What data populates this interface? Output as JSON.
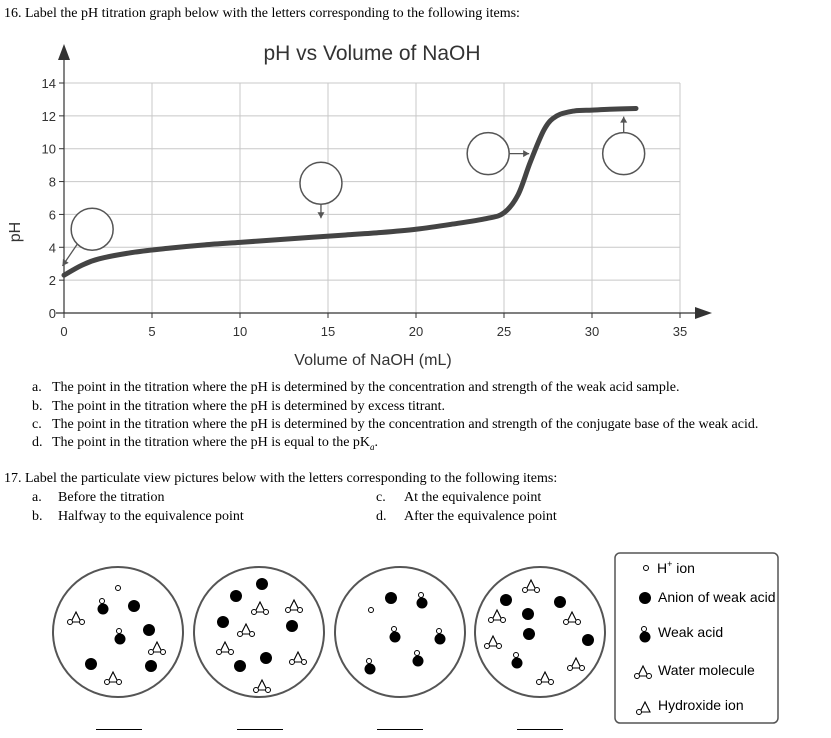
{
  "q16": {
    "prompt": "16.  Label the pH titration graph below with the letters corresponding to the following items:",
    "options": [
      {
        "letter": "a.",
        "text": "The point in the titration where the pH is determined by the concentration and strength of the weak acid sample."
      },
      {
        "letter": "b.",
        "text": "The point in the titration where the pH is determined by excess titrant."
      },
      {
        "letter": "c.",
        "text": "The point in the titration where the pH is determined by the concentration and strength of the conjugate base of the weak acid."
      },
      {
        "letter": "d.",
        "text": "The point in the titration where the pH is equal to the pK"
      },
      {
        "pka_sub": "a",
        "pka_end": "."
      }
    ]
  },
  "chart_data": {
    "type": "line",
    "title": "pH vs Volume of NaOH",
    "xlabel": "Volume of NaOH (mL)",
    "ylabel": "pH",
    "xlim": [
      0,
      35
    ],
    "ylim": [
      0,
      14
    ],
    "xticks": [
      0,
      5,
      10,
      15,
      20,
      25,
      30,
      35
    ],
    "yticks": [
      0,
      2,
      4,
      6,
      8,
      10,
      12,
      14
    ],
    "grid": true,
    "series": [
      {
        "x": [
          0,
          1,
          2,
          4,
          6,
          8,
          10,
          12,
          14,
          16,
          18,
          20,
          22,
          24,
          25,
          25.8,
          26.5,
          27.3,
          28,
          29,
          30,
          31,
          32.5
        ],
        "y": [
          2.3,
          2.9,
          3.3,
          3.7,
          3.95,
          4.15,
          4.3,
          4.45,
          4.6,
          4.75,
          4.9,
          5.1,
          5.4,
          5.75,
          6.1,
          7.2,
          9.2,
          11.2,
          12.0,
          12.3,
          12.35,
          12.4,
          12.45
        ]
      }
    ],
    "label_circles": [
      {
        "x": 1.6,
        "y": 5.1,
        "arrow": "down-left"
      },
      {
        "x": 14.6,
        "y": 7.9,
        "arrow": "down"
      },
      {
        "x": 24.1,
        "y": 9.7,
        "arrow": "right"
      },
      {
        "x": 31.8,
        "y": 9.7,
        "arrow": "up"
      }
    ]
  },
  "q17": {
    "prompt": "17. Label the particulate view pictures below with the letters corresponding to the following items:",
    "options": [
      {
        "letter": "a.",
        "text": "Before the titration"
      },
      {
        "letter": "b.",
        "text": "Halfway to the equivalence point"
      },
      {
        "letter": "c.",
        "text": "At the equivalence point"
      },
      {
        "letter": "d.",
        "text": "After the equivalence point"
      }
    ]
  },
  "legend": {
    "h_ion_base": "H",
    "h_ion_sup": "+",
    "h_ion_rest": " ion",
    "anion": "Anion of weak acid",
    "weak_acid": "Weak acid",
    "water": "Water molecule",
    "hydroxide": "Hydroxide ion"
  }
}
